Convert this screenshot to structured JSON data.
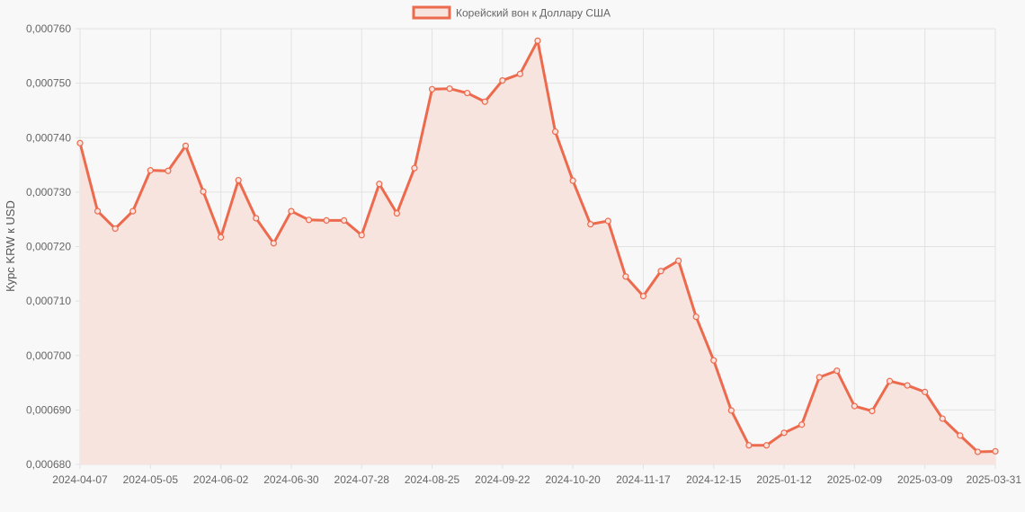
{
  "chart_data": {
    "type": "line",
    "legend": {
      "label": "Корейский вон к Доллару США",
      "position": "top"
    },
    "ylabel": "Курс KRW к USD",
    "xlabel": "",
    "ylim": [
      0.00068,
      0.00076
    ],
    "y_ticks": [
      "0,000680",
      "0,000690",
      "0,000700",
      "0,000710",
      "0,000720",
      "0,000730",
      "0,000740",
      "0,000750",
      "0,000760"
    ],
    "x_tick_labels": [
      "2024-04-07",
      "2024-05-05",
      "2024-06-02",
      "2024-06-30",
      "2024-07-28",
      "2024-08-25",
      "2024-09-22",
      "2024-10-20",
      "2024-11-17",
      "2024-12-15",
      "2025-01-12",
      "2025-02-09",
      "2025-03-09",
      "2025-03-31"
    ],
    "grid": true,
    "fill": true,
    "colors": {
      "line": "#ec6a4e",
      "fill": "#f8e4de",
      "grid": "#e2e2e2",
      "background": "#f8f8f8"
    },
    "series": [
      {
        "name": "Корейский вон к Доллару США",
        "values": [
          0.000739,
          0.0007265,
          0.0007233,
          0.0007265,
          0.000734,
          0.0007339,
          0.0007385,
          0.0007301,
          0.0007217,
          0.0007322,
          0.0007252,
          0.0007206,
          0.0007265,
          0.0007249,
          0.0007248,
          0.0007248,
          0.0007221,
          0.0007315,
          0.0007261,
          0.0007344,
          0.0007489,
          0.000749,
          0.0007482,
          0.0007466,
          0.0007505,
          0.0007517,
          0.0007578,
          0.0007411,
          0.0007321,
          0.0007241,
          0.0007247,
          0.0007145,
          0.0007109,
          0.0007155,
          0.0007174,
          0.0007071,
          0.0006991,
          0.0006899,
          0.0006835,
          0.0006835,
          0.0006858,
          0.0006873,
          0.000696,
          0.0006972,
          0.0006907,
          0.0006898,
          0.0006953,
          0.0006945,
          0.0006933,
          0.0006884,
          0.0006853,
          0.0006823,
          0.0006824
        ]
      }
    ]
  }
}
